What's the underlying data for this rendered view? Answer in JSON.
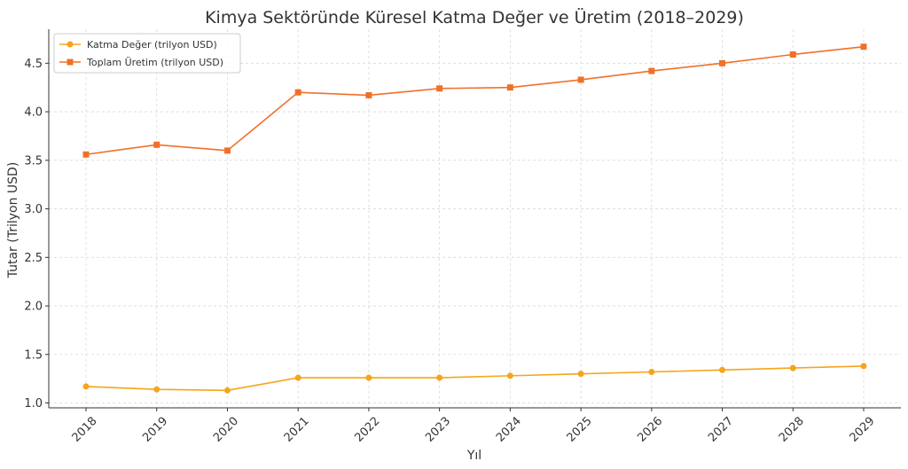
{
  "chart_data": {
    "type": "line",
    "title": "Kimya Sektöründe Küresel Katma Değer ve Üretim (2018–2029)",
    "xlabel": "Yıl",
    "ylabel": "Tutar (Trilyon USD)",
    "x": [
      "2018",
      "2019",
      "2020",
      "2021",
      "2022",
      "2023",
      "2024",
      "2025",
      "2026",
      "2027",
      "2028",
      "2029"
    ],
    "ylim": [
      0.95,
      4.85
    ],
    "yticks": [
      "1.0",
      "1.5",
      "2.0",
      "2.5",
      "3.0",
      "3.5",
      "4.0",
      "4.5"
    ],
    "grid": true,
    "legend_position": "top-left",
    "series": [
      {
        "name": "Katma Değer (trilyon USD)",
        "color": "#f5a51a",
        "marker": "circle",
        "values": [
          1.17,
          1.14,
          1.13,
          1.26,
          1.26,
          1.26,
          1.28,
          1.3,
          1.32,
          1.34,
          1.36,
          1.38
        ]
      },
      {
        "name": "Toplam Üretim (trilyon USD)",
        "color": "#f07028",
        "marker": "square",
        "values": [
          3.56,
          3.66,
          3.6,
          4.2,
          4.17,
          4.24,
          4.25,
          4.33,
          4.42,
          4.5,
          4.59,
          4.67
        ]
      }
    ]
  }
}
